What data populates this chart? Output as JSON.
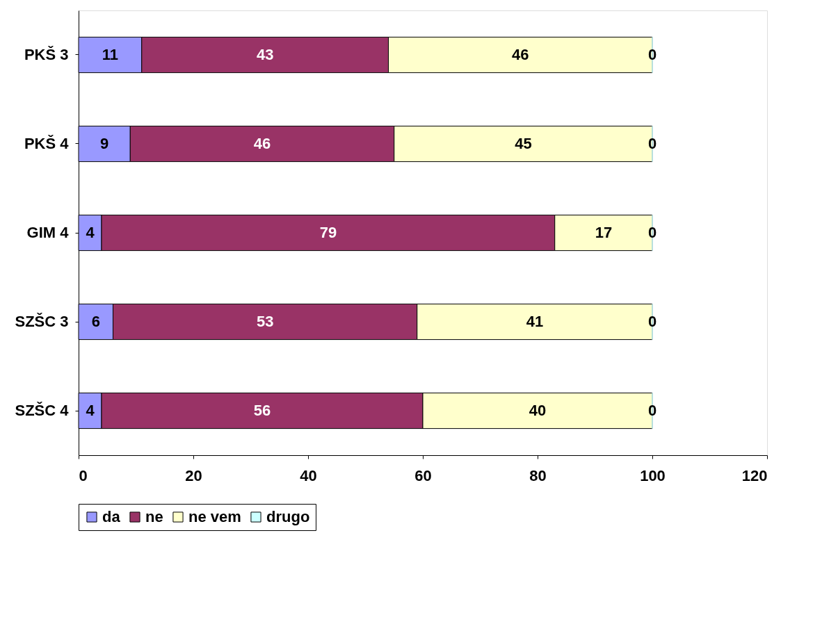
{
  "chart_data": {
    "type": "bar",
    "orientation": "horizontal",
    "stacked": true,
    "categories": [
      "PKŠ 3",
      "PKŠ 4",
      "GIM 4",
      "SZŠC 3",
      "SZŠC 4"
    ],
    "series": [
      {
        "name": "da",
        "color": "#9999ff",
        "values": [
          11,
          9,
          4,
          6,
          4
        ]
      },
      {
        "name": "ne",
        "color": "#993366",
        "values": [
          43,
          46,
          79,
          53,
          56
        ]
      },
      {
        "name": "ne vem",
        "color": "#ffffcc",
        "values": [
          46,
          45,
          17,
          41,
          40
        ]
      },
      {
        "name": "drugo",
        "color": "#ccffff",
        "values": [
          0,
          0,
          0,
          0,
          0
        ]
      }
    ],
    "xlim": [
      0,
      120
    ],
    "xticks": [
      0,
      20,
      40,
      60,
      80,
      100,
      120
    ],
    "grid": false,
    "legend": "bottom",
    "data_labels": true
  }
}
